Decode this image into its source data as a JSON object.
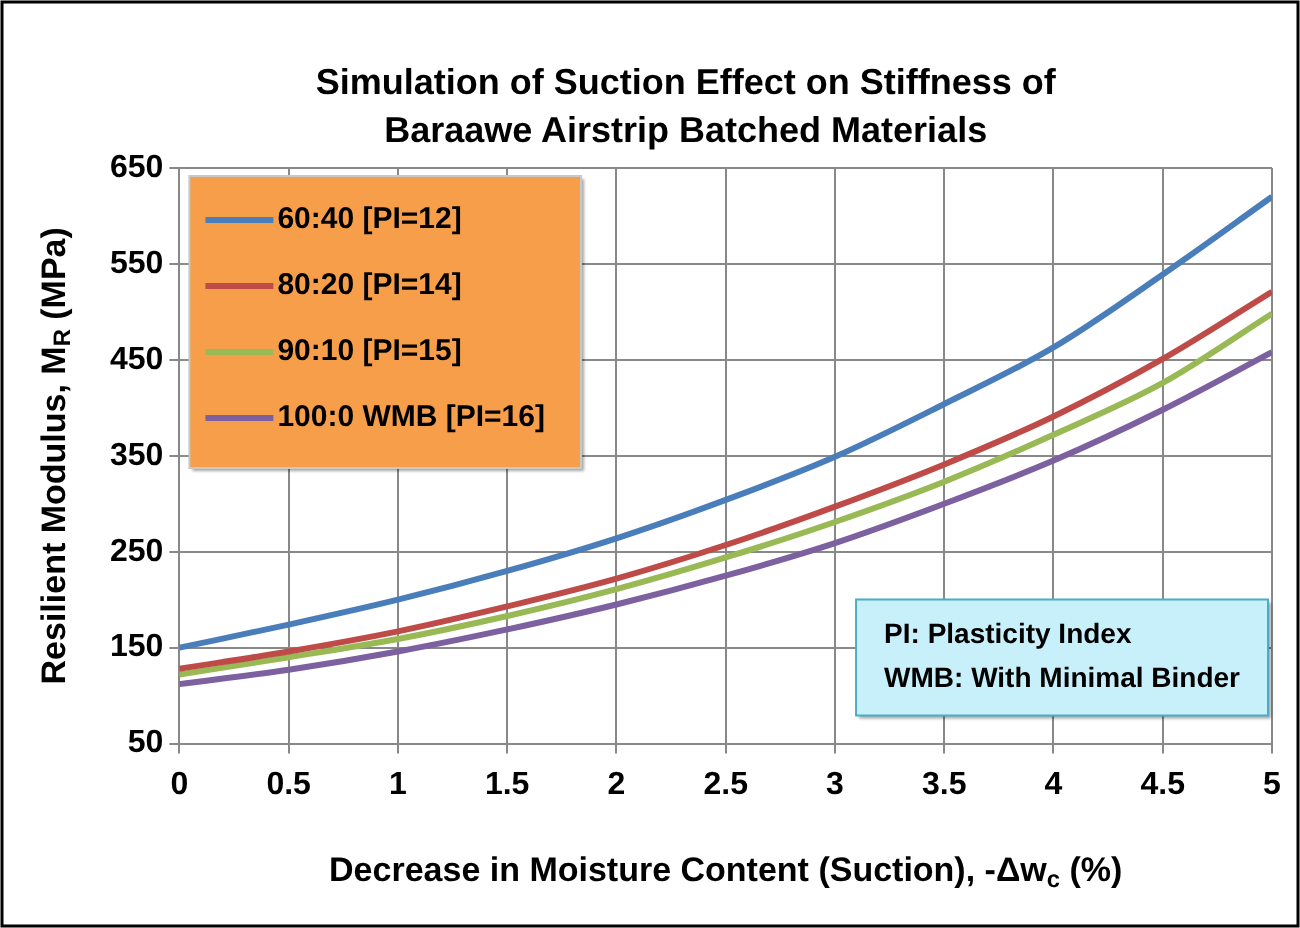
{
  "chart_data": {
    "type": "line",
    "title": "Simulation of Suction Effect on Stiffness of Baraawe Airstrip Batched Materials",
    "xlabel": "Decrease in Moisture Content (Suction), -Δw$_{c}$ (%)",
    "ylabel": "Resilient Modulus, M$_{R}$ (MPa)",
    "x": [
      0,
      0.5,
      1,
      1.5,
      2,
      2.5,
      3,
      3.5,
      4,
      4.5,
      5
    ],
    "series": [
      {
        "name": "60:40 [PI=12]",
        "color": "#4a7ebb",
        "values": [
          150,
          174,
          200,
          230,
          264,
          304,
          349,
          404,
          463,
          539,
          620
        ]
      },
      {
        "name": "80:20 [PI=14]",
        "color": "#be4b48",
        "values": [
          128,
          146,
          167,
          193,
          222,
          257,
          297,
          341,
          391,
          451,
          521
        ]
      },
      {
        "name": "90:10 [PI=15]",
        "color": "#98b954",
        "values": [
          122,
          140,
          159,
          183,
          211,
          244,
          281,
          323,
          372,
          426,
          498
        ]
      },
      {
        "name": "100:0 WMB [PI=16]",
        "color": "#7d60a0",
        "values": [
          112,
          127,
          146,
          169,
          195,
          225,
          259,
          300,
          345,
          398,
          458
        ]
      }
    ],
    "xlim": [
      0,
      5
    ],
    "xticks": [
      0,
      0.5,
      1,
      1.5,
      2,
      2.5,
      3,
      3.5,
      4,
      4.5,
      5
    ],
    "ylim": [
      50,
      650
    ],
    "yticks": [
      50,
      150,
      250,
      350,
      450,
      550,
      650
    ],
    "grid": true,
    "legend": "top left",
    "marker": "none",
    "line_style": "solid",
    "annotations": [
      "PI: Plasticity Index\nWMB: With Minimal Binder"
    ]
  }
}
